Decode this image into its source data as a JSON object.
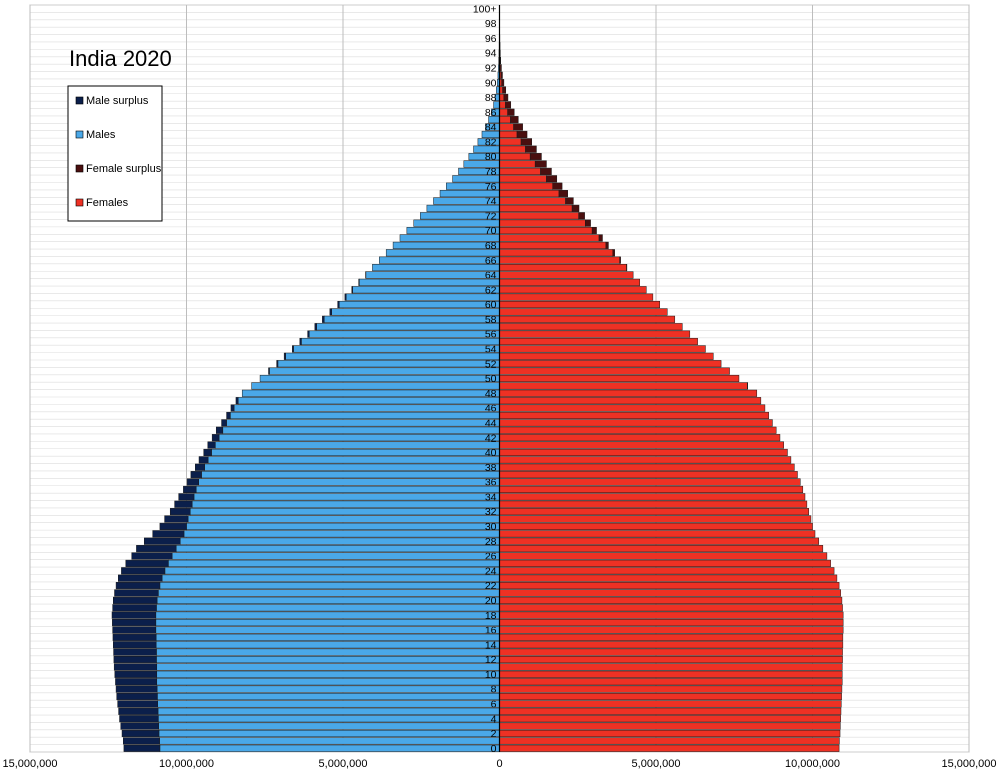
{
  "chart_data": {
    "type": "bar",
    "orientation": "horizontal-population-pyramid",
    "title": "India 2020",
    "xlim": [
      -15000000,
      15000000
    ],
    "x_ticks": [
      -15000000,
      -10000000,
      -5000000,
      0,
      5000000,
      10000000,
      15000000
    ],
    "x_tick_labels": [
      "15,000,000",
      "10,000,000",
      "5,000,000",
      "0",
      "5,000,000",
      "10,000,000",
      "15,000,000"
    ],
    "grid": true,
    "legend_placement": "top-left",
    "age_labels": [
      "0",
      "2",
      "4",
      "6",
      "8",
      "10",
      "12",
      "14",
      "16",
      "18",
      "20",
      "22",
      "24",
      "26",
      "28",
      "30",
      "32",
      "34",
      "36",
      "38",
      "40",
      "42",
      "44",
      "46",
      "48",
      "50",
      "52",
      "54",
      "56",
      "58",
      "60",
      "62",
      "64",
      "66",
      "68",
      "70",
      "72",
      "74",
      "76",
      "78",
      "80",
      "82",
      "84",
      "86",
      "88",
      "90",
      "92",
      "94",
      "96",
      "98",
      "100+"
    ],
    "categories": [
      "0",
      "1",
      "2",
      "3",
      "4",
      "5",
      "6",
      "7",
      "8",
      "9",
      "10",
      "11",
      "12",
      "13",
      "14",
      "15",
      "16",
      "17",
      "18",
      "19",
      "20",
      "21",
      "22",
      "23",
      "24",
      "25",
      "26",
      "27",
      "28",
      "29",
      "30",
      "31",
      "32",
      "33",
      "34",
      "35",
      "36",
      "37",
      "38",
      "39",
      "40",
      "41",
      "42",
      "43",
      "44",
      "45",
      "46",
      "47",
      "48",
      "49",
      "50",
      "51",
      "52",
      "53",
      "54",
      "55",
      "56",
      "57",
      "58",
      "59",
      "60",
      "61",
      "62",
      "63",
      "64",
      "65",
      "66",
      "67",
      "68",
      "69",
      "70",
      "71",
      "72",
      "73",
      "74",
      "75",
      "76",
      "77",
      "78",
      "79",
      "80",
      "81",
      "82",
      "83",
      "84",
      "85",
      "86",
      "87",
      "88",
      "89",
      "90",
      "91",
      "92",
      "93",
      "94",
      "95",
      "96",
      "97",
      "98",
      "99",
      "100+"
    ],
    "males": [
      12000000,
      12020000,
      12060000,
      12100000,
      12140000,
      12170000,
      12200000,
      12230000,
      12250000,
      12270000,
      12290000,
      12310000,
      12320000,
      12330000,
      12340000,
      12350000,
      12360000,
      12370000,
      12380000,
      12360000,
      12340000,
      12300000,
      12250000,
      12180000,
      12080000,
      11940000,
      11750000,
      11600000,
      11350000,
      11080000,
      10850000,
      10700000,
      10520000,
      10380000,
      10250000,
      10100000,
      9980000,
      9860000,
      9720000,
      9600000,
      9450000,
      9320000,
      9180000,
      9050000,
      8880000,
      8720000,
      8580000,
      8420000,
      8220000,
      7920000,
      7650000,
      7380000,
      7120000,
      6880000,
      6620000,
      6380000,
      6130000,
      5900000,
      5660000,
      5420000,
      5170000,
      4940000,
      4720000,
      4500000,
      4280000,
      4060000,
      3840000,
      3620000,
      3400000,
      3180000,
      2960000,
      2740000,
      2530000,
      2320000,
      2110000,
      1900000,
      1700000,
      1500000,
      1310000,
      1140000,
      980000,
      830000,
      690000,
      560000,
      450000,
      350000,
      260000,
      190000,
      140000,
      100000,
      70000,
      50000,
      35000,
      25000,
      17000,
      11000,
      7000,
      4000,
      2500,
      1500,
      3000
    ],
    "females": [
      10850000,
      10860000,
      10880000,
      10890000,
      10900000,
      10910000,
      10920000,
      10930000,
      10940000,
      10950000,
      10950000,
      10950000,
      10960000,
      10960000,
      10970000,
      10970000,
      10980000,
      10980000,
      10980000,
      10960000,
      10940000,
      10900000,
      10850000,
      10780000,
      10690000,
      10580000,
      10460000,
      10330000,
      10200000,
      10080000,
      10000000,
      9950000,
      9880000,
      9820000,
      9760000,
      9690000,
      9610000,
      9520000,
      9420000,
      9310000,
      9200000,
      9080000,
      8960000,
      8840000,
      8720000,
      8600000,
      8480000,
      8350000,
      8220000,
      7930000,
      7650000,
      7350000,
      7080000,
      6830000,
      6580000,
      6330000,
      6080000,
      5840000,
      5600000,
      5360000,
      5120000,
      4900000,
      4690000,
      4480000,
      4270000,
      4070000,
      3870000,
      3680000,
      3480000,
      3290000,
      3100000,
      2910000,
      2720000,
      2540000,
      2360000,
      2180000,
      2000000,
      1830000,
      1660000,
      1500000,
      1340000,
      1180000,
      1030000,
      880000,
      740000,
      600000,
      470000,
      360000,
      270000,
      200000,
      140000,
      95000,
      62000,
      40000,
      26000,
      17000,
      11000,
      7000,
      4500,
      2800,
      5000
    ],
    "series": [
      {
        "name": "Male surplus",
        "color": "#0b1f4b"
      },
      {
        "name": "Males",
        "color": "#4aa8e8"
      },
      {
        "name": "Female surplus",
        "color": "#4a0f0f"
      },
      {
        "name": "Females",
        "color": "#ee3124"
      }
    ]
  }
}
